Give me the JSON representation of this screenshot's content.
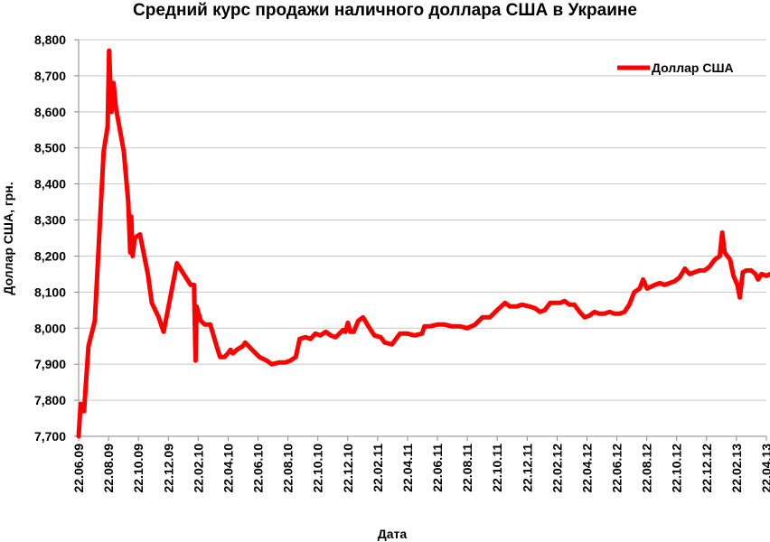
{
  "chart_data": {
    "type": "line",
    "title": "Средний курс продажи наличного доллара США в Украине",
    "xlabel": "Дата",
    "ylabel": "Доллар США, грн.",
    "ylim": [
      7.7,
      8.8
    ],
    "y_ticks": [
      "7,700",
      "7,800",
      "7,900",
      "8,000",
      "8,100",
      "8,200",
      "8,300",
      "8,400",
      "8,500",
      "8,600",
      "8,700",
      "8,800"
    ],
    "x_tick_labels": [
      "22.06.09",
      "22.08.09",
      "22.10.09",
      "22.12.09",
      "22.02.10",
      "22.04.10",
      "22.06.10",
      "22.08.10",
      "22.10.10",
      "22.12.10",
      "22.02.11",
      "22.04.11",
      "22.06.11",
      "22.08.11",
      "22.10.11",
      "22.12.11",
      "22.02.12",
      "22.04.12",
      "22.06.12",
      "22.08.12",
      "22.10.12",
      "22.12.12",
      "22.02.13",
      "22.04.13"
    ],
    "grid": "horizontal",
    "legend": "top-right",
    "series": [
      {
        "name": "Доллар США",
        "color": "#ff0000",
        "values": [
          [
            "2009-06-22",
            7.7
          ],
          [
            "2009-06-26",
            7.79
          ],
          [
            "2009-06-30",
            7.77
          ],
          [
            "2009-07-03",
            7.77
          ],
          [
            "2009-07-12",
            7.95
          ],
          [
            "2009-07-25",
            8.02
          ],
          [
            "2009-08-12",
            8.49
          ],
          [
            "2009-08-20",
            8.56
          ],
          [
            "2009-08-23",
            8.77
          ],
          [
            "2009-08-28",
            8.6
          ],
          [
            "2009-09-01",
            8.68
          ],
          [
            "2009-09-06",
            8.61
          ],
          [
            "2009-09-22",
            8.49
          ],
          [
            "2009-10-01",
            8.35
          ],
          [
            "2009-10-05",
            8.21
          ],
          [
            "2009-10-07",
            8.31
          ],
          [
            "2009-10-10",
            8.2
          ],
          [
            "2009-10-14",
            8.25
          ],
          [
            "2009-10-25",
            8.26
          ],
          [
            "2009-11-10",
            8.15
          ],
          [
            "2009-11-18",
            8.07
          ],
          [
            "2009-12-02",
            8.03
          ],
          [
            "2009-12-12",
            7.99
          ],
          [
            "2009-12-22",
            8.06
          ],
          [
            "2010-01-08",
            8.18
          ],
          [
            "2010-01-22",
            8.15
          ],
          [
            "2010-02-05",
            8.12
          ],
          [
            "2010-02-12",
            8.12
          ],
          [
            "2010-02-15",
            7.91
          ],
          [
            "2010-02-17",
            8.06
          ],
          [
            "2010-02-26",
            8.02
          ],
          [
            "2010-03-06",
            8.01
          ],
          [
            "2010-03-17",
            8.01
          ],
          [
            "2010-03-30",
            7.95
          ],
          [
            "2010-04-06",
            7.92
          ],
          [
            "2010-04-15",
            7.92
          ],
          [
            "2010-04-22",
            7.93
          ],
          [
            "2010-04-27",
            7.94
          ],
          [
            "2010-05-02",
            7.93
          ],
          [
            "2010-05-10",
            7.94
          ],
          [
            "2010-05-22",
            7.95
          ],
          [
            "2010-05-27",
            7.96
          ],
          [
            "2010-06-10",
            7.94
          ],
          [
            "2010-06-25",
            7.92
          ],
          [
            "2010-07-10",
            7.91
          ],
          [
            "2010-07-20",
            7.9
          ],
          [
            "2010-08-05",
            7.905
          ],
          [
            "2010-08-17",
            7.905
          ],
          [
            "2010-08-27",
            7.91
          ],
          [
            "2010-09-07",
            7.92
          ],
          [
            "2010-09-15",
            7.97
          ],
          [
            "2010-09-27",
            7.975
          ],
          [
            "2010-10-07",
            7.97
          ],
          [
            "2010-10-17",
            7.985
          ],
          [
            "2010-10-27",
            7.98
          ],
          [
            "2010-11-07",
            7.99
          ],
          [
            "2010-11-17",
            7.98
          ],
          [
            "2010-11-27",
            7.975
          ],
          [
            "2010-12-05",
            7.985
          ],
          [
            "2010-12-12",
            7.995
          ],
          [
            "2010-12-17",
            7.99
          ],
          [
            "2010-12-22",
            8.015
          ],
          [
            "2010-12-27",
            7.99
          ],
          [
            "2011-01-03",
            7.99
          ],
          [
            "2011-01-12",
            8.02
          ],
          [
            "2011-01-22",
            8.03
          ],
          [
            "2011-02-02",
            8.005
          ],
          [
            "2011-02-14",
            7.98
          ],
          [
            "2011-02-27",
            7.975
          ],
          [
            "2011-03-07",
            7.96
          ],
          [
            "2011-03-22",
            7.955
          ],
          [
            "2011-04-07",
            7.985
          ],
          [
            "2011-04-22",
            7.985
          ],
          [
            "2011-05-07",
            7.98
          ],
          [
            "2011-05-22",
            7.985
          ],
          [
            "2011-05-27",
            8.005
          ],
          [
            "2011-06-07",
            8.005
          ],
          [
            "2011-06-22",
            8.01
          ],
          [
            "2011-07-07",
            8.01
          ],
          [
            "2011-07-22",
            8.005
          ],
          [
            "2011-08-07",
            8.005
          ],
          [
            "2011-08-22",
            8.0
          ],
          [
            "2011-09-07",
            8.01
          ],
          [
            "2011-09-22",
            8.03
          ],
          [
            "2011-10-07",
            8.03
          ],
          [
            "2011-10-22",
            8.05
          ],
          [
            "2011-11-07",
            8.07
          ],
          [
            "2011-11-17",
            8.06
          ],
          [
            "2011-11-30",
            8.06
          ],
          [
            "2011-12-12",
            8.065
          ],
          [
            "2011-12-27",
            8.06
          ],
          [
            "2012-01-07",
            8.055
          ],
          [
            "2012-01-17",
            8.045
          ],
          [
            "2012-01-27",
            8.05
          ],
          [
            "2012-02-07",
            8.07
          ],
          [
            "2012-02-17",
            8.07
          ],
          [
            "2012-02-27",
            8.07
          ],
          [
            "2012-03-07",
            8.075
          ],
          [
            "2012-03-17",
            8.065
          ],
          [
            "2012-03-27",
            8.065
          ],
          [
            "2012-04-07",
            8.045
          ],
          [
            "2012-04-17",
            8.03
          ],
          [
            "2012-04-27",
            8.035
          ],
          [
            "2012-05-07",
            8.045
          ],
          [
            "2012-05-17",
            8.04
          ],
          [
            "2012-05-27",
            8.04
          ],
          [
            "2012-06-07",
            8.045
          ],
          [
            "2012-06-17",
            8.04
          ],
          [
            "2012-06-27",
            8.04
          ],
          [
            "2012-07-07",
            8.045
          ],
          [
            "2012-07-17",
            8.065
          ],
          [
            "2012-07-27",
            8.1
          ],
          [
            "2012-08-07",
            8.11
          ],
          [
            "2012-08-14",
            8.135
          ],
          [
            "2012-08-22",
            8.11
          ],
          [
            "2012-09-07",
            8.12
          ],
          [
            "2012-09-17",
            8.125
          ],
          [
            "2012-09-27",
            8.12
          ],
          [
            "2012-10-07",
            8.125
          ],
          [
            "2012-10-17",
            8.13
          ],
          [
            "2012-10-27",
            8.14
          ],
          [
            "2012-11-07",
            8.165
          ],
          [
            "2012-11-17",
            8.15
          ],
          [
            "2012-11-27",
            8.155
          ],
          [
            "2012-12-07",
            8.16
          ],
          [
            "2012-12-17",
            8.16
          ],
          [
            "2012-12-27",
            8.17
          ],
          [
            "2013-01-07",
            8.19
          ],
          [
            "2013-01-17",
            8.2
          ],
          [
            "2013-01-22",
            8.265
          ],
          [
            "2013-01-27",
            8.21
          ],
          [
            "2013-02-07",
            8.19
          ],
          [
            "2013-02-14",
            8.145
          ],
          [
            "2013-02-22",
            8.12
          ],
          [
            "2013-02-27",
            8.085
          ],
          [
            "2013-03-05",
            8.155
          ],
          [
            "2013-03-12",
            8.16
          ],
          [
            "2013-03-22",
            8.16
          ],
          [
            "2013-03-31",
            8.15
          ],
          [
            "2013-04-05",
            8.135
          ],
          [
            "2013-04-12",
            8.15
          ],
          [
            "2013-04-22",
            8.145
          ],
          [
            "2013-04-29",
            8.15
          ],
          [
            "2013-05-07",
            8.155
          ],
          [
            "2013-05-14",
            8.145
          ],
          [
            "2013-05-22",
            8.145
          ]
        ]
      }
    ]
  }
}
